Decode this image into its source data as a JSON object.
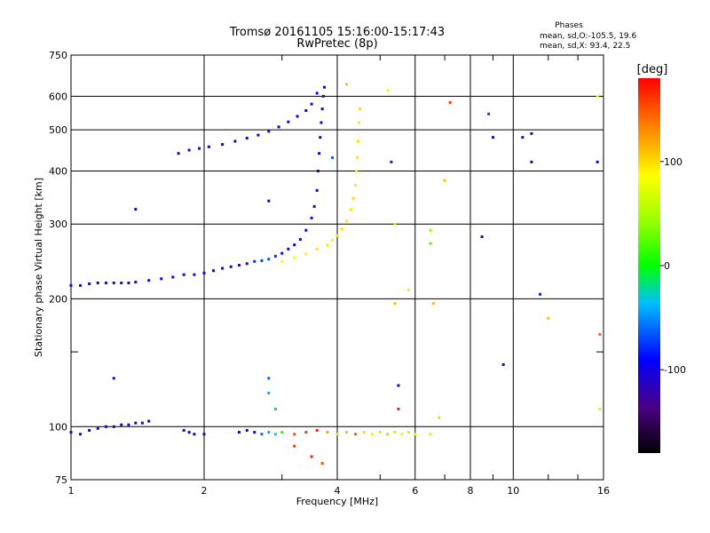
{
  "header": {
    "title_line1": "Tromsø 20161105 15:16:00-15:17:43",
    "title_line2": "RwPretec (8p)",
    "phases_label": "Phases",
    "stat_o": "mean, sd,O:-105.5, 19.6",
    "stat_x": "mean, sd,X:  93.4, 22.5"
  },
  "colorbar": {
    "unit_label": "[deg]",
    "range": [
      -180,
      180
    ],
    "tick_values": [
      100,
      0,
      -100
    ],
    "tick_labels": [
      "100",
      "0",
      "-100"
    ]
  },
  "chart_data": {
    "type": "scatter",
    "xlabel": "Frequency [MHz]",
    "ylabel": "Stationary phase Virtual Height [km]",
    "xscale": "log",
    "yscale": "log",
    "xlim": [
      1,
      16
    ],
    "ylim": [
      75,
      750
    ],
    "grid": true,
    "x_ticks": [
      1,
      2,
      4,
      6,
      8,
      10,
      16
    ],
    "x_tick_labels": [
      "1",
      "2",
      "4",
      "6",
      "8",
      "10",
      "16"
    ],
    "x_minor_ticks": [
      3,
      5,
      7,
      9,
      12,
      14
    ],
    "y_ticks": [
      75,
      100,
      200,
      300,
      400,
      500,
      600,
      750
    ],
    "y_tick_labels": [
      "75",
      "100",
      "200",
      "300",
      "400",
      "500",
      "600",
      "750"
    ],
    "y_minor_ticks": [
      150
    ],
    "series": [
      {
        "name": "",
        "description": "O-mode F-layer trace",
        "x": [
          1.0,
          1.05,
          1.1,
          1.15,
          1.2,
          1.25,
          1.3,
          1.35,
          1.4,
          1.5,
          1.6,
          1.7,
          1.8,
          1.9,
          2.0,
          2.1,
          2.2,
          2.3,
          2.4,
          2.5,
          2.6,
          2.7,
          2.8,
          2.9,
          3.0,
          3.1,
          3.2,
          3.3,
          3.4,
          3.5,
          3.55,
          3.6,
          3.62,
          3.64,
          3.66,
          3.68,
          3.7,
          3.72,
          3.74
        ],
        "y": [
          215,
          215,
          217,
          218,
          218,
          218,
          218,
          218,
          219,
          221,
          223,
          225,
          228,
          228,
          230,
          233,
          236,
          238,
          240,
          242,
          245,
          246,
          248,
          252,
          256,
          262,
          268,
          276,
          290,
          310,
          330,
          360,
          400,
          440,
          480,
          520,
          560,
          600,
          630
        ],
        "phase": [
          -110,
          -112,
          -108,
          -110,
          -115,
          -112,
          -110,
          -108,
          -110,
          -112,
          -110,
          -108,
          -110,
          -110,
          -105,
          -100,
          -95,
          -100,
          -95,
          -90,
          -80,
          -70,
          -65,
          -75,
          -90,
          -95,
          -100,
          -105,
          -110,
          -110,
          -110,
          -110,
          -108,
          -105,
          -110,
          -112,
          -110,
          -108,
          -105
        ]
      },
      {
        "name": "",
        "description": "X-mode F-layer trace",
        "x": [
          3.0,
          3.2,
          3.4,
          3.6,
          3.8,
          3.9,
          4.0,
          4.1,
          4.2,
          4.3,
          4.35,
          4.4,
          4.42,
          4.44,
          4.46,
          4.48,
          4.5
        ],
        "y": [
          245,
          250,
          255,
          262,
          268,
          275,
          282,
          292,
          305,
          325,
          345,
          370,
          400,
          430,
          470,
          520,
          560
        ],
        "phase": [
          80,
          85,
          90,
          95,
          95,
          90,
          95,
          100,
          95,
          95,
          100,
          95,
          90,
          95,
          100,
          95,
          100
        ]
      },
      {
        "name": "",
        "description": "Upper branch around 440-650 km",
        "x": [
          1.75,
          1.85,
          1.95,
          2.05,
          2.2,
          2.35,
          2.5,
          2.65,
          2.8,
          2.95,
          3.1,
          3.25,
          3.4,
          3.5,
          3.6
        ],
        "y": [
          440,
          448,
          452,
          456,
          462,
          470,
          478,
          486,
          496,
          508,
          522,
          538,
          555,
          575,
          610
        ],
        "phase": [
          -110,
          -112,
          -108,
          -110,
          -108,
          -110,
          -105,
          -112,
          -110,
          -108,
          -112,
          -110,
          -108,
          -110,
          -112
        ]
      },
      {
        "name": "",
        "description": "E-region echoes near 100 km",
        "x": [
          1.0,
          1.05,
          1.1,
          1.15,
          1.2,
          1.25,
          1.3,
          1.35,
          1.4,
          1.45,
          1.5,
          1.8,
          1.85,
          1.9,
          2.0,
          2.4,
          2.5,
          2.6,
          2.7,
          2.8,
          2.9,
          3.0,
          3.2,
          3.4,
          3.6,
          3.8,
          4.0,
          4.2,
          4.4,
          4.6,
          4.8,
          5.0,
          5.2,
          5.4,
          5.6,
          5.8,
          6.0,
          6.5
        ],
        "y": [
          97,
          96,
          98,
          99,
          100,
          100,
          101,
          101,
          102,
          102,
          103,
          98,
          97,
          96,
          96,
          97,
          98,
          97,
          96,
          97,
          96,
          97,
          96,
          97,
          98,
          97,
          96,
          97,
          96,
          97,
          96,
          97,
          96,
          97,
          96,
          97,
          96,
          96
        ],
        "phase": [
          -105,
          -110,
          -108,
          -110,
          -112,
          -110,
          -108,
          -110,
          -112,
          -110,
          -108,
          -110,
          -105,
          -108,
          -110,
          -100,
          -95,
          -90,
          -60,
          -40,
          -20,
          10,
          150,
          160,
          170,
          120,
          100,
          110,
          150,
          100,
          90,
          100,
          110,
          100,
          95,
          100,
          90,
          95
        ]
      },
      {
        "name": "",
        "description": "Scattered points",
        "x": [
          1.25,
          1.4,
          2.8,
          2.8,
          2.8,
          2.9,
          3.2,
          3.5,
          3.7,
          3.9,
          4.2,
          5.2,
          5.3,
          5.4,
          5.4,
          5.5,
          5.5,
          5.8,
          6.5,
          6.5,
          6.6,
          6.8,
          7.0,
          7.2,
          8.5,
          8.8,
          9.0,
          9.5,
          10.5,
          11.0,
          11.0,
          11.5,
          12.0,
          15.5,
          15.5,
          15.7,
          15.7
        ],
        "y": [
          130,
          325,
          340,
          130,
          120,
          110,
          90,
          85,
          82,
          430,
          640,
          620,
          420,
          300,
          195,
          125,
          110,
          210,
          290,
          270,
          195,
          105,
          380,
          580,
          280,
          545,
          480,
          140,
          480,
          490,
          420,
          205,
          180,
          600,
          420,
          165,
          110
        ],
        "phase": [
          -110,
          -105,
          -100,
          -60,
          -40,
          -20,
          160,
          170,
          150,
          -60,
          110,
          90,
          -80,
          100,
          110,
          -110,
          170,
          90,
          40,
          20,
          110,
          100,
          110,
          160,
          -120,
          -70,
          -100,
          -120,
          -100,
          -120,
          -110,
          -80,
          110,
          80,
          -100,
          150,
          60
        ]
      }
    ]
  }
}
